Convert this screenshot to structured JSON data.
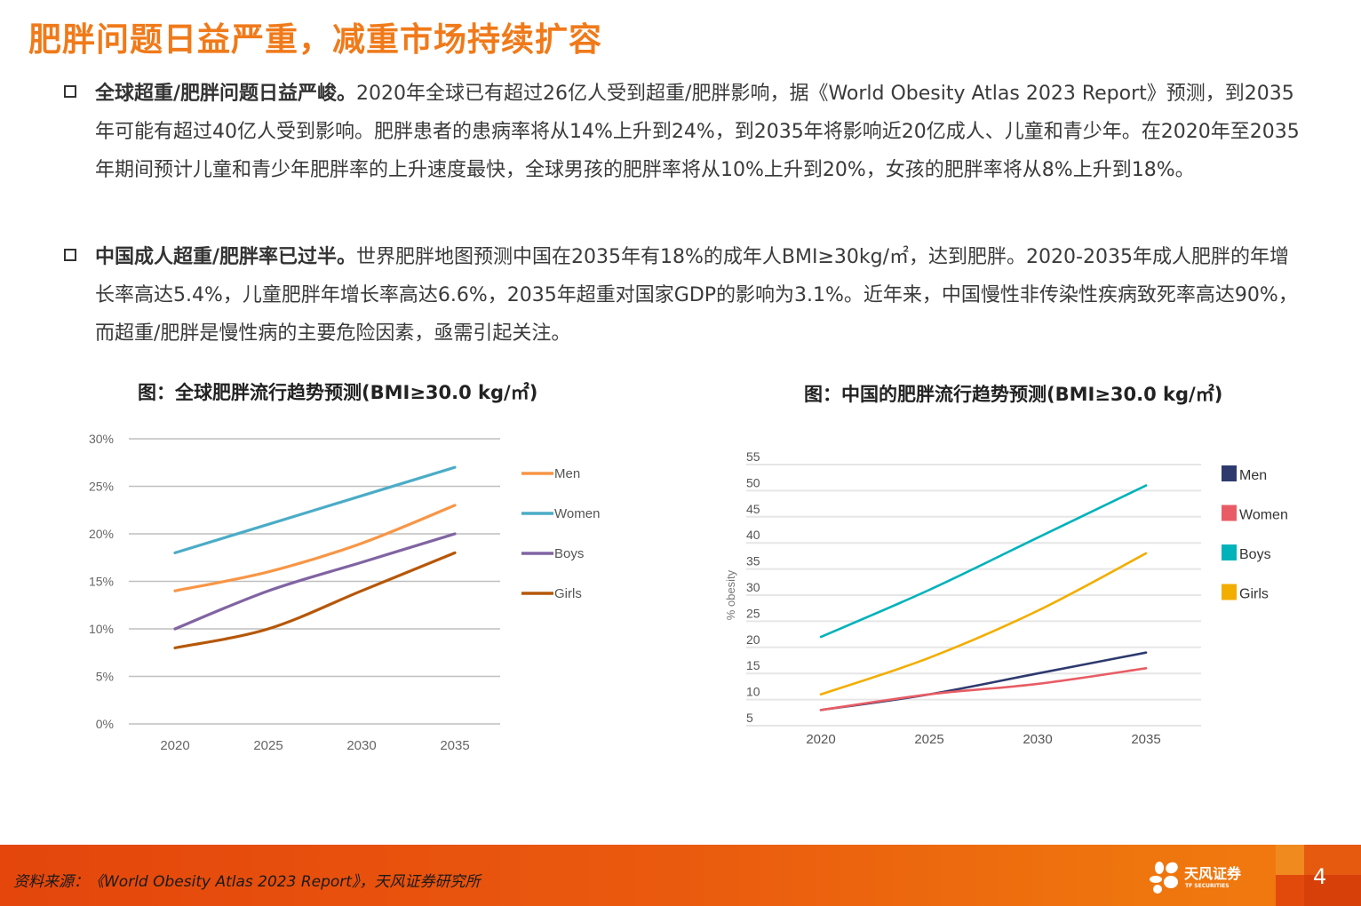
{
  "title": "肥胖问题日益严重，减重市场持续扩容",
  "bullets": [
    {
      "lead": "全球超重/肥胖问题日益严峻。",
      "text": "2020年全球已有超过26亿人受到超重/肥胖影响，据《World Obesity Atlas 2023 Report》预测，到2035年可能有超过40亿人受到影响。肥胖患者的患病率将从14%上升到24%，到2035年将影响近20亿成人、儿童和青少年。在2020年至2035年期间预计儿童和青少年肥胖率的上升速度最快，全球男孩的肥胖率将从10%上升到20%，女孩的肥胖率将从8%上升到18%。"
    },
    {
      "lead": "中国成人超重/肥胖率已过半。",
      "text": "世界肥胖地图预测中国在2035年有18%的成年人BMI≥30kg/㎡，达到肥胖。2020-2035年成人肥胖的年增长率高达5.4%，儿童肥胖年增长率高达6.6%，2035年超重对国家GDP的影响为3.1%。近年来，中国慢性非传染性疾病致死率高达90%，而超重/肥胖是慢性病的主要危险因素，亟需引起关注。"
    }
  ],
  "chart_data": [
    {
      "type": "line",
      "title": "图：全球肥胖流行趋势预测(BMI≥30.0 kg/㎡)",
      "categories": [
        "2020",
        "2025",
        "2030",
        "2035"
      ],
      "yticks": [
        "0%",
        "5%",
        "10%",
        "15%",
        "20%",
        "25%",
        "30%"
      ],
      "ylim": [
        0,
        30
      ],
      "ylabel": "",
      "grid": true,
      "legend": "right",
      "series": [
        {
          "name": "Men",
          "color": "#F79646",
          "values": [
            14,
            16,
            19,
            23
          ]
        },
        {
          "name": "Women",
          "color": "#4BACC6",
          "values": [
            18,
            21,
            24,
            27
          ]
        },
        {
          "name": "Boys",
          "color": "#8064A2",
          "values": [
            10,
            14,
            17,
            20
          ]
        },
        {
          "name": "Girls",
          "color": "#B65708",
          "values": [
            8,
            10,
            14,
            18
          ]
        }
      ]
    },
    {
      "type": "line",
      "title": "图：中国的肥胖流行趋势预测(BMI≥30.0 kg/㎡)",
      "categories": [
        "2020",
        "2025",
        "2030",
        "2035"
      ],
      "yticks": [
        "5",
        "10",
        "15",
        "20",
        "25",
        "30",
        "35",
        "40",
        "45",
        "50",
        "55"
      ],
      "ylim": [
        5,
        55
      ],
      "ylabel": "% obesity",
      "grid": true,
      "legend": "right",
      "series": [
        {
          "name": "Men",
          "color": "#2E3A6E",
          "values": [
            8,
            11,
            15,
            19
          ]
        },
        {
          "name": "Women",
          "color": "#E85D65",
          "values": [
            8,
            11,
            13,
            16
          ]
        },
        {
          "name": "Boys",
          "color": "#00B2BA",
          "values": [
            22,
            31,
            41,
            51
          ]
        },
        {
          "name": "Girls",
          "color": "#F2AE00",
          "values": [
            11,
            18,
            27,
            38
          ]
        }
      ]
    }
  ],
  "footer": {
    "source": "资料来源：《World Obesity Atlas 2023 Report》，天风证券研究所",
    "logo_cn": "天风证券",
    "logo_en": "TF SECURITIES",
    "page": "4"
  }
}
